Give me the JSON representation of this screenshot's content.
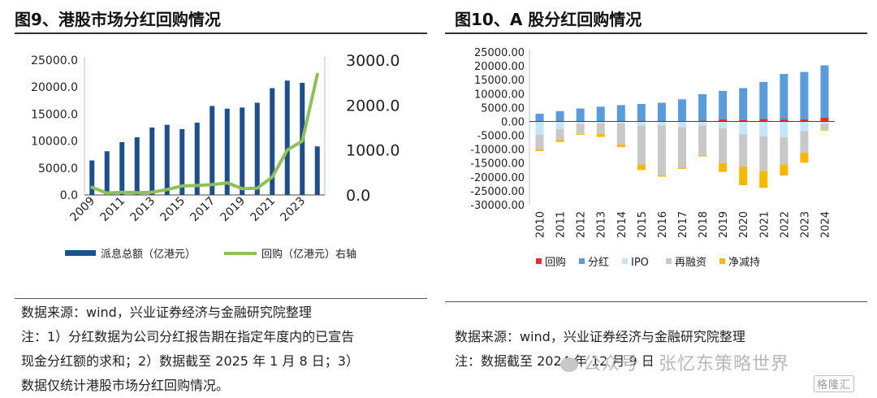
{
  "left": {
    "title": "图9、港股市场分红回购情况",
    "source_lines": [
      "数据来源：wind，兴业证券经济与金融研究院整理",
      "注：1）分红数据为公司分红报告期在指定年度内的已宣告",
      "现金分红额的求和；2）数据截至 2025 年 1 月 8 日；3）",
      "数据仅统计港股市场分红回购情况。"
    ]
  },
  "right": {
    "title": "图10、A 股分红回购情况",
    "source_lines": [
      "数据来源：wind，兴业证券经济与金融研究院整理",
      "注：数据截至 2024 年 12 月 9 日"
    ]
  },
  "watermark": {
    "text": "公众号 · 张忆东策略世界",
    "logo": "格隆汇"
  },
  "chart_data": [
    {
      "type": "bar+line",
      "title": "图9、港股市场分红回购情况",
      "x": [
        "2009",
        "2010",
        "2011",
        "2012",
        "2013",
        "2014",
        "2015",
        "2016",
        "2017",
        "2018",
        "2019",
        "2020",
        "2021",
        "2022",
        "2023",
        "2024"
      ],
      "x_tick_labels": [
        "2009",
        "2011",
        "2013",
        "2015",
        "2017",
        "2019",
        "2021",
        "2023"
      ],
      "left_axis": {
        "ylim": [
          0,
          25000
        ],
        "ticks": [
          "0.0",
          "5000.0",
          "10000.0",
          "15000.0",
          "20000.0",
          "25000.0"
        ]
      },
      "right_axis": {
        "ylim": [
          0,
          3000
        ],
        "ticks": [
          "0.0",
          "1000.0",
          "2000.0",
          "3000.0"
        ]
      },
      "series": [
        {
          "name": "派息总额（亿港元）",
          "kind": "bar",
          "axis": "left",
          "color": "#1f4e8c",
          "values": [
            6400,
            8100,
            9800,
            10700,
            12500,
            13000,
            12200,
            13400,
            16500,
            16000,
            16200,
            17100,
            19800,
            21200,
            20800,
            9000
          ]
        },
        {
          "name": "回购（亿港元）右轴",
          "kind": "line",
          "axis": "right",
          "color": "#8fc055",
          "values": [
            170,
            40,
            60,
            50,
            60,
            120,
            200,
            210,
            230,
            270,
            140,
            150,
            400,
            1000,
            1200,
            2680
          ]
        }
      ],
      "legend": "bottom"
    },
    {
      "type": "stacked-bar",
      "title": "图10、A 股分红回购情况",
      "categories": [
        "2010",
        "2011",
        "2012",
        "2013",
        "2014",
        "2015",
        "2016",
        "2017",
        "2018",
        "2019",
        "2020",
        "2021",
        "2022",
        "2023",
        "2024"
      ],
      "ylim": [
        -30000,
        25000
      ],
      "ticks": [
        "25000.00",
        "20000.00",
        "15000.00",
        "10000.00",
        "5000.00",
        "0.00",
        "-5000.00",
        "-10000.00",
        "-15000.00",
        "-20000.00",
        "-25000.00",
        "-30000.00"
      ],
      "series": [
        {
          "name": "回购",
          "color": "#e03030",
          "values": [
            50,
            80,
            80,
            100,
            80,
            100,
            100,
            150,
            300,
            800,
            500,
            900,
            700,
            800,
            1400
          ]
        },
        {
          "name": "分红",
          "color": "#5a9bdc",
          "values": [
            2700,
            3600,
            4600,
            5200,
            5800,
            6200,
            6600,
            7800,
            9500,
            10200,
            11500,
            13300,
            16400,
            17000,
            18800
          ]
        },
        {
          "name": "IPO",
          "color": "#c5e6f8",
          "values": [
            -4800,
            -2800,
            -1000,
            -700,
            -700,
            -1500,
            -1400,
            -2000,
            -1500,
            -2500,
            -4700,
            -5400,
            -5700,
            -3500,
            -800
          ]
        },
        {
          "name": "再融资",
          "color": "#c8c8c8",
          "values": [
            -5200,
            -3800,
            -3500,
            -3900,
            -7600,
            -14000,
            -18000,
            -14600,
            -10600,
            -12500,
            -11500,
            -12500,
            -9800,
            -7800,
            -2200
          ]
        },
        {
          "name": "净减持",
          "color": "#f6b800",
          "values": [
            -700,
            -800,
            -300,
            -1000,
            -1000,
            -2000,
            -500,
            -500,
            -500,
            -3200,
            -6800,
            -6000,
            -4000,
            -3600,
            -300
          ]
        }
      ],
      "legend": "bottom"
    }
  ]
}
